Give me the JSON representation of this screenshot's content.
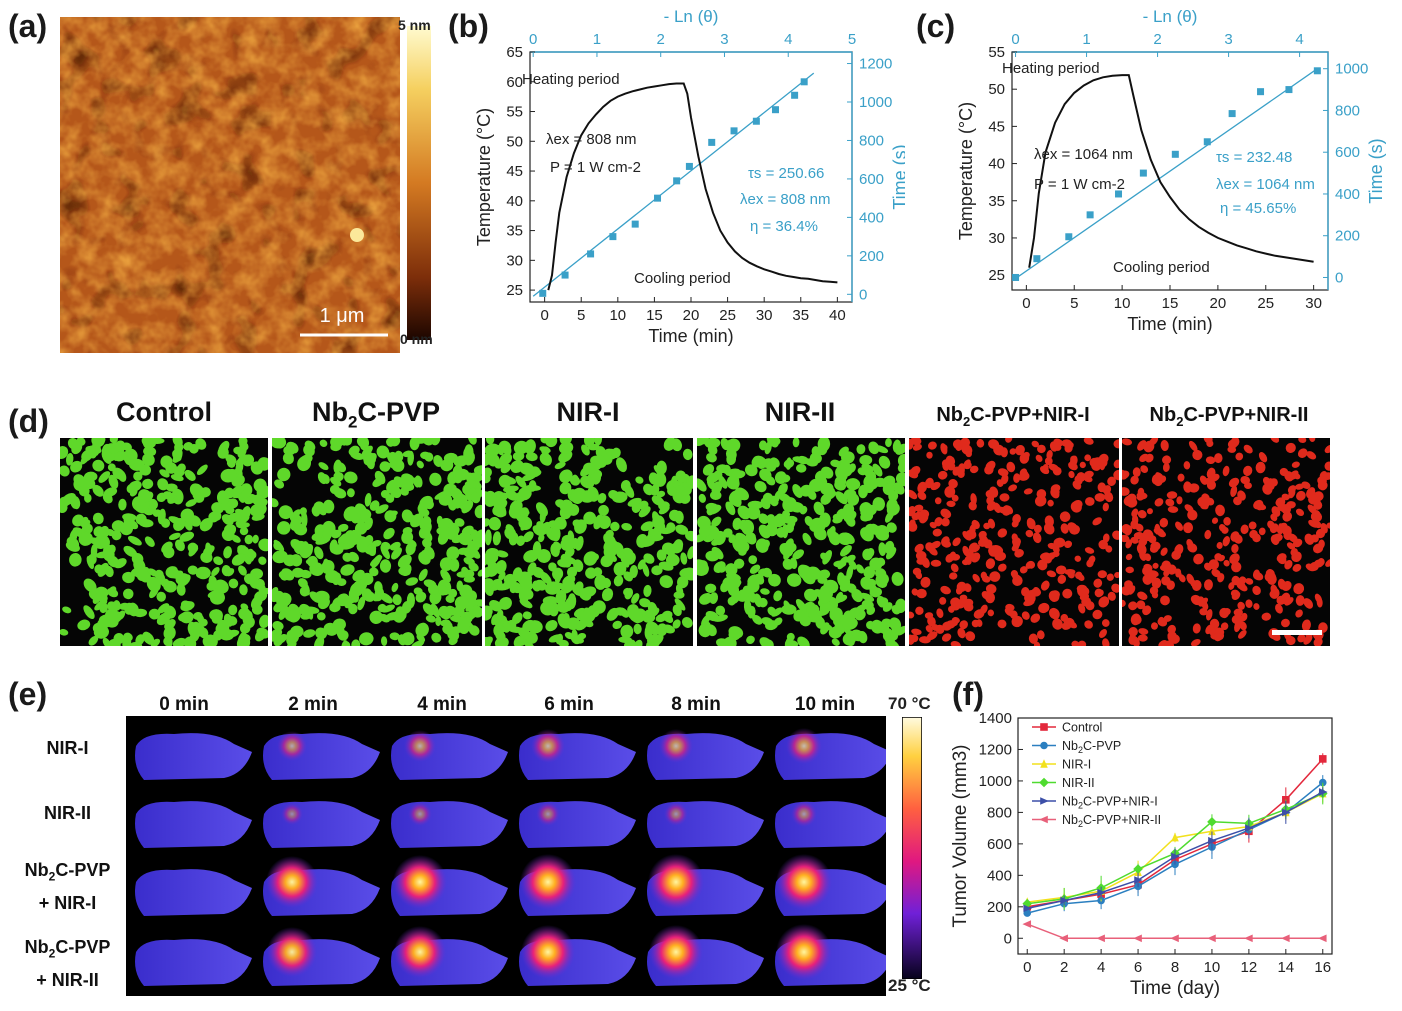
{
  "labels": {
    "a": "(a)",
    "b": "(b)",
    "c": "(c)",
    "d": "(d)",
    "e": "(e)",
    "f": "(f)"
  },
  "panel_a": {
    "scale_max": "5 nm",
    "scale_min": "0 nm",
    "scalebar": "1 μm"
  },
  "panel_d": {
    "headers": [
      {
        "pre": "Control",
        "sub": "",
        "post": ""
      },
      {
        "pre": "Nb",
        "sub": "2",
        "post": "C-PVP"
      },
      {
        "pre": "NIR-I",
        "sub": "",
        "post": ""
      },
      {
        "pre": "NIR-II",
        "sub": "",
        "post": ""
      },
      {
        "pre": "Nb",
        "sub": "2",
        "post": "C-PVP+NIR-I"
      },
      {
        "pre": "Nb",
        "sub": "2",
        "post": "C-PVP+NIR-II"
      }
    ],
    "colors": [
      "#5fd82a",
      "#5fd82a",
      "#5fd82a",
      "#5fd82a",
      "#e02a1c",
      "#e02a1c"
    ]
  },
  "panel_e": {
    "times": [
      "0 min",
      "2 min",
      "4 min",
      "6 min",
      "8 min",
      "10 min"
    ],
    "rows": [
      {
        "line1_pre": "NIR-I",
        "line1_sub": "",
        "line1_post": "",
        "line2": ""
      },
      {
        "line1_pre": "NIR-II",
        "line1_sub": "",
        "line1_post": "",
        "line2": ""
      },
      {
        "line1_pre": "Nb",
        "line1_sub": "2",
        "line1_post": "C-PVP",
        "line2": "+ NIR-I"
      },
      {
        "line1_pre": "Nb",
        "line1_sub": "2",
        "line1_post": "C-PVP",
        "line2": "+ NIR-II"
      }
    ],
    "hotspot": [
      [
        0,
        0.35,
        0.4,
        0.45,
        0.45,
        0.5
      ],
      [
        0,
        0.15,
        0.2,
        0.2,
        0.2,
        0.25
      ],
      [
        0,
        0.9,
        0.95,
        1.0,
        1.0,
        1.0
      ],
      [
        0,
        0.85,
        0.9,
        0.95,
        0.95,
        1.0
      ]
    ],
    "colorbar_max": "70 °C",
    "colorbar_min": "25 °C"
  },
  "chart_data": [
    {
      "id": "b",
      "type": "line",
      "xlabel": "Time (min)",
      "ylabel": "Temperature (°C)",
      "xlim": [
        -2,
        42
      ],
      "ylim": [
        23,
        65
      ],
      "xticks": [
        0,
        5,
        10,
        15,
        20,
        25,
        30,
        35,
        40
      ],
      "yticks": [
        25,
        30,
        35,
        40,
        45,
        50,
        55,
        60,
        65
      ],
      "top_label": "- Ln (θ)",
      "top_lim": [
        -0.05,
        5.0
      ],
      "top_ticks": [
        0,
        1,
        2,
        3,
        4,
        5
      ],
      "right_label": "Time (s)",
      "right_lim": [
        -40,
        1260
      ],
      "right_ticks": [
        0,
        200,
        400,
        600,
        800,
        1000,
        1200
      ],
      "annotations": {
        "heating": "Heating period",
        "cooling": "Cooling period",
        "lambda": "λex = 808 nm",
        "power": "P = 1 W cm-2",
        "tau": "τs = 250.66",
        "lambda2": "λex = 808 nm",
        "eta": "η = 36.4%"
      },
      "temp_curve": [
        [
          0.5,
          25
        ],
        [
          1.0,
          27.5
        ],
        [
          1.5,
          33
        ],
        [
          2,
          38
        ],
        [
          3,
          44
        ],
        [
          4,
          48
        ],
        [
          5,
          51
        ],
        [
          6,
          53
        ],
        [
          7,
          54.5
        ],
        [
          8,
          55.8
        ],
        [
          9,
          56.8
        ],
        [
          10,
          57.5
        ],
        [
          11,
          58
        ],
        [
          12,
          58.4
        ],
        [
          13,
          58.7
        ],
        [
          14,
          59
        ],
        [
          15,
          59.2
        ],
        [
          16,
          59.4
        ],
        [
          17,
          59.6
        ],
        [
          18,
          59.7
        ],
        [
          19,
          59.7
        ],
        [
          19.5,
          58
        ],
        [
          20,
          54
        ],
        [
          21,
          47.5
        ],
        [
          22,
          42
        ],
        [
          23,
          38
        ],
        [
          24,
          35
        ],
        [
          25,
          33
        ],
        [
          26,
          31.5
        ],
        [
          27,
          30.4
        ],
        [
          28,
          29.6
        ],
        [
          29,
          29
        ],
        [
          30,
          28.5
        ],
        [
          31,
          28.1
        ],
        [
          32,
          27.7
        ],
        [
          33,
          27.4
        ],
        [
          34,
          27.2
        ],
        [
          35,
          27
        ],
        [
          36,
          26.9
        ],
        [
          37,
          26.7
        ],
        [
          38,
          26.5
        ],
        [
          39,
          26.4
        ],
        [
          40,
          26.3
        ]
      ],
      "fit_points": [
        [
          0.15,
          5
        ],
        [
          0.5,
          100
        ],
        [
          0.9,
          210
        ],
        [
          1.25,
          300
        ],
        [
          1.6,
          365
        ],
        [
          1.95,
          500
        ],
        [
          2.25,
          590
        ],
        [
          2.45,
          665
        ],
        [
          2.8,
          790
        ],
        [
          3.15,
          850
        ],
        [
          3.5,
          900
        ],
        [
          3.8,
          960
        ],
        [
          4.1,
          1035
        ],
        [
          4.25,
          1105
        ]
      ],
      "fit_line": [
        [
          0,
          -10
        ],
        [
          4.4,
          1150
        ]
      ]
    },
    {
      "id": "c",
      "type": "line",
      "xlabel": "Time (min)",
      "ylabel": "Temperature (°C)",
      "xlim": [
        -1.5,
        31.5
      ],
      "ylim": [
        23,
        55
      ],
      "xticks": [
        0,
        5,
        10,
        15,
        20,
        25,
        30
      ],
      "yticks": [
        25,
        30,
        35,
        40,
        45,
        50,
        55
      ],
      "top_label": "- Ln (θ)",
      "top_lim": [
        -0.05,
        4.4
      ],
      "top_ticks": [
        0,
        1,
        2,
        3,
        4
      ],
      "right_label": "Time (s)",
      "right_lim": [
        -60,
        1080
      ],
      "right_ticks": [
        0,
        200,
        400,
        600,
        800,
        1000
      ],
      "annotations": {
        "heating": "Heating period",
        "cooling": "Cooling period",
        "lambda": "λex = 1064 nm",
        "power": "P = 1 W cm-2",
        "tau": "τs = 232.48",
        "lambda2": "λex = 1064 nm",
        "eta": "η = 45.65%"
      },
      "temp_curve": [
        [
          0.3,
          26
        ],
        [
          0.8,
          30
        ],
        [
          1.3,
          36
        ],
        [
          2,
          41.5
        ],
        [
          3,
          45.5
        ],
        [
          4,
          48
        ],
        [
          5,
          49.5
        ],
        [
          6,
          50.5
        ],
        [
          7,
          51.2
        ],
        [
          8,
          51.6
        ],
        [
          9,
          51.8
        ],
        [
          10,
          51.9
        ],
        [
          10.7,
          51.9
        ],
        [
          11.2,
          49
        ],
        [
          12,
          44.5
        ],
        [
          13,
          40.5
        ],
        [
          14,
          37.5
        ],
        [
          15,
          35.5
        ],
        [
          16,
          33.8
        ],
        [
          17,
          32.5
        ],
        [
          18,
          31.5
        ],
        [
          19,
          30.7
        ],
        [
          20,
          30
        ],
        [
          21,
          29.5
        ],
        [
          22,
          29
        ],
        [
          23,
          28.6
        ],
        [
          24,
          28.2
        ],
        [
          25,
          27.9
        ],
        [
          26,
          27.6
        ],
        [
          27,
          27.4
        ],
        [
          28,
          27.2
        ],
        [
          29,
          27
        ],
        [
          30,
          26.8
        ]
      ],
      "fit_points": [
        [
          0,
          0
        ],
        [
          0.3,
          90
        ],
        [
          0.75,
          195
        ],
        [
          1.05,
          300
        ],
        [
          1.45,
          400
        ],
        [
          1.8,
          500
        ],
        [
          2.25,
          590
        ],
        [
          2.7,
          650
        ],
        [
          3.05,
          785
        ],
        [
          3.45,
          890
        ],
        [
          3.85,
          900
        ],
        [
          4.25,
          990
        ]
      ],
      "fit_line": [
        [
          0,
          -5
        ],
        [
          4.25,
          1000
        ]
      ]
    },
    {
      "id": "f",
      "type": "line",
      "xlabel": "Time (day)",
      "ylabel": "Tumor Volume (mm3)",
      "xlim": [
        -0.5,
        16.5
      ],
      "ylim": [
        -100,
        1400
      ],
      "xticks": [
        0,
        2,
        4,
        6,
        8,
        10,
        12,
        14,
        16
      ],
      "yticks": [
        0,
        200,
        400,
        600,
        800,
        1000,
        1200,
        1400
      ],
      "x": [
        0,
        2,
        4,
        6,
        8,
        10,
        12,
        14,
        16
      ],
      "series": [
        {
          "name": "Control",
          "color": "#e3283c",
          "marker": "square",
          "values": [
            200,
            240,
            280,
            340,
            500,
            600,
            680,
            880,
            1140
          ]
        },
        {
          "name": "Nb2C-PVP",
          "color": "#2b7fc0",
          "marker": "circle",
          "values": [
            160,
            220,
            240,
            330,
            470,
            580,
            690,
            800,
            990
          ]
        },
        {
          "name": "NIR-I",
          "color": "#f2e11d",
          "marker": "triangle",
          "values": [
            230,
            260,
            300,
            420,
            640,
            680,
            710,
            800,
            920
          ]
        },
        {
          "name": "NIR-II",
          "color": "#4fdb2f",
          "marker": "diamond",
          "values": [
            220,
            250,
            320,
            440,
            540,
            740,
            730,
            820,
            920
          ]
        },
        {
          "name": "Nb2C-PVP+NIR-I",
          "color": "#3c4fa8",
          "marker": "triangle-right",
          "values": [
            190,
            240,
            290,
            370,
            520,
            620,
            700,
            800,
            930
          ]
        },
        {
          "name": "Nb2C-PVP+NIR-II",
          "color": "#e8607a",
          "marker": "triangle-left",
          "values": [
            90,
            0,
            0,
            0,
            0,
            0,
            0,
            0,
            0
          ]
        }
      ]
    }
  ]
}
